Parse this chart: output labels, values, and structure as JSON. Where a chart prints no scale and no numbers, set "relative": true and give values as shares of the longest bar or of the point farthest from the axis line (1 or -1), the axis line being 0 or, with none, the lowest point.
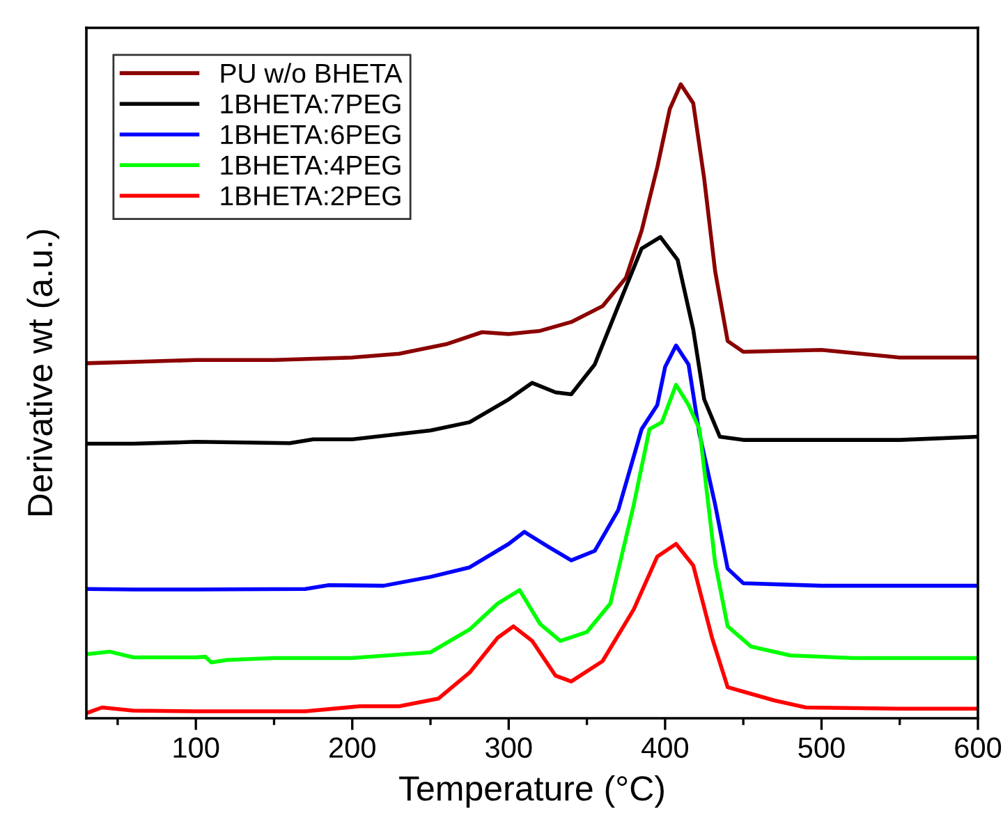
{
  "chart_data": {
    "type": "line",
    "relative": true,
    "xlabel": "Temperature (°C)",
    "ylabel": "Derivative wt (a.u.)",
    "xlim": [
      30,
      600
    ],
    "xticks": [
      {
        "value": 50,
        "label": null
      },
      100,
      {
        "value": 150,
        "label": null
      },
      200,
      {
        "value": 250,
        "label": null
      },
      300,
      {
        "value": 350,
        "label": null
      },
      400,
      {
        "value": 450,
        "label": null
      },
      500,
      {
        "value": 550,
        "label": null
      },
      600
    ],
    "tick_labels": "x",
    "grid": false,
    "legend": "top left",
    "line_style": "solid",
    "marker": "none",
    "series": [
      {
        "name": "PU w/o BHETA",
        "color": "#8b0000",
        "x": [
          30,
          60,
          100,
          150,
          200,
          230,
          260,
          283,
          300,
          320,
          340,
          360,
          375,
          385,
          395,
          403,
          410,
          418,
          425,
          432,
          440,
          450,
          500,
          550,
          600
        ],
        "values": [
          0.56,
          0.562,
          0.565,
          0.565,
          0.569,
          0.575,
          0.59,
          0.609,
          0.606,
          0.611,
          0.625,
          0.65,
          0.695,
          0.769,
          0.869,
          0.961,
          1.0,
          0.97,
          0.851,
          0.705,
          0.595,
          0.578,
          0.581,
          0.569,
          0.569
        ]
      },
      {
        "name": "1BHETA:7PEG",
        "color": "#000000",
        "x": [
          30,
          60,
          100,
          160,
          175,
          200,
          250,
          275,
          300,
          315,
          330,
          340,
          355,
          370,
          385,
          397,
          408,
          418,
          425,
          435,
          450,
          500,
          550,
          600
        ],
        "values": [
          0.433,
          0.433,
          0.436,
          0.434,
          0.44,
          0.44,
          0.454,
          0.467,
          0.503,
          0.529,
          0.514,
          0.511,
          0.558,
          0.65,
          0.741,
          0.759,
          0.723,
          0.613,
          0.503,
          0.444,
          0.439,
          0.439,
          0.439,
          0.444
        ]
      },
      {
        "name": "1BHETA:6PEG",
        "color": "#0000ff",
        "x": [
          30,
          60,
          100,
          170,
          185,
          220,
          250,
          275,
          300,
          310,
          325,
          340,
          355,
          370,
          385,
          395,
          400,
          407,
          415,
          422,
          432,
          440,
          450,
          500,
          600
        ],
        "values": [
          0.204,
          0.203,
          0.203,
          0.204,
          0.21,
          0.209,
          0.223,
          0.238,
          0.275,
          0.294,
          0.271,
          0.249,
          0.264,
          0.328,
          0.456,
          0.494,
          0.554,
          0.588,
          0.558,
          0.448,
          0.337,
          0.236,
          0.213,
          0.209,
          0.209
        ]
      },
      {
        "name": "1BHETA:4PEG",
        "color": "#00ff00",
        "x": [
          30,
          45,
          60,
          100,
          106,
          110,
          120,
          150,
          200,
          250,
          275,
          293,
          307,
          320,
          333,
          350,
          365,
          380,
          390,
          398,
          407,
          415,
          422,
          432,
          440,
          455,
          480,
          520,
          600
        ],
        "values": [
          0.101,
          0.105,
          0.096,
          0.096,
          0.097,
          0.088,
          0.092,
          0.095,
          0.095,
          0.104,
          0.14,
          0.181,
          0.202,
          0.149,
          0.122,
          0.136,
          0.181,
          0.337,
          0.456,
          0.467,
          0.526,
          0.494,
          0.456,
          0.245,
          0.145,
          0.113,
          0.099,
          0.095,
          0.095
        ]
      },
      {
        "name": "1BHETA:2PEG",
        "color": "#ff0000",
        "x": [
          30,
          40,
          60,
          100,
          170,
          205,
          230,
          255,
          275,
          293,
          303,
          315,
          330,
          340,
          360,
          380,
          395,
          407,
          418,
          430,
          440,
          450,
          470,
          490,
          550,
          600
        ],
        "values": [
          0.008,
          0.017,
          0.012,
          0.011,
          0.011,
          0.019,
          0.019,
          0.031,
          0.072,
          0.127,
          0.145,
          0.122,
          0.067,
          0.058,
          0.09,
          0.172,
          0.255,
          0.275,
          0.241,
          0.127,
          0.049,
          0.042,
          0.028,
          0.017,
          0.015,
          0.015
        ]
      }
    ]
  }
}
